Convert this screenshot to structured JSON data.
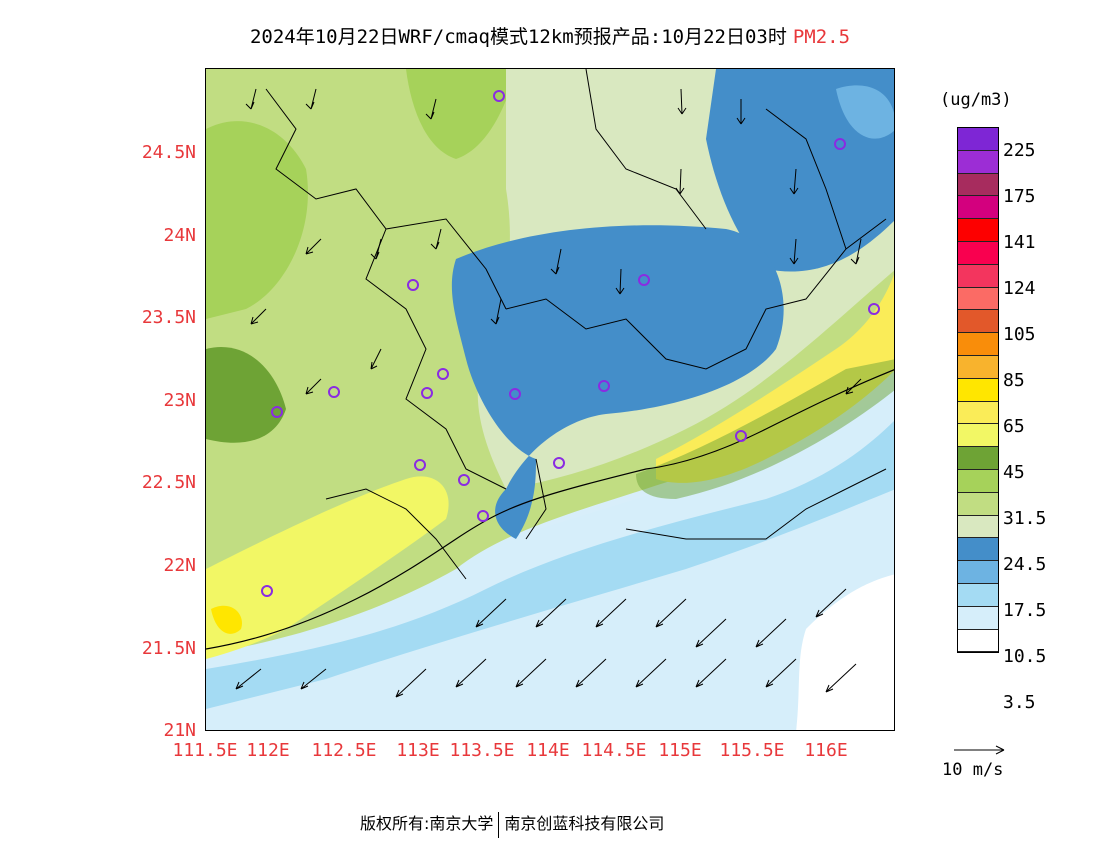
{
  "title": {
    "text": "2024年10月22日WRF/cmaq模式12km预报产品:10月22日03时",
    "pollutant": "PM2.5",
    "pollutant_color": "#e8383b"
  },
  "map": {
    "lat_labels": [
      "24.5N",
      "24N",
      "23.5N",
      "23N",
      "22.5N",
      "22N",
      "21.5N",
      "21N"
    ],
    "lon_labels": [
      "111.5E",
      "112E",
      "112.5E",
      "113E",
      "113.5E",
      "114E",
      "114.5E",
      "115E",
      "115.5E",
      "116E"
    ]
  },
  "legend": {
    "unit": "(ug/m3)",
    "colors": [
      "#ffffff",
      "#d6eefa",
      "#a4dbf3",
      "#6db3e2",
      "#448ec9",
      "#d9e8c0",
      "#c1dd82",
      "#a6d25a",
      "#6ea335",
      "#f2f765",
      "#faec58",
      "#ffe600",
      "#f8b32d",
      "#f98d0a",
      "#e2582a",
      "#fb6b65",
      "#f3355e",
      "#f9004f",
      "#fd0000",
      "#d3007e",
      "#a72c5e",
      "#9c2dd5",
      "#7e26d5"
    ],
    "labels": [
      "3.5",
      "10.5",
      "17.5",
      "24.5",
      "31.5",
      "45",
      "65",
      "85",
      "105",
      "124",
      "141",
      "175",
      "225"
    ]
  },
  "wind_scale_label": "10 m/s",
  "copyright": {
    "left": "版权所有:南京大学",
    "right": "南京创蓝科技有限公司"
  }
}
